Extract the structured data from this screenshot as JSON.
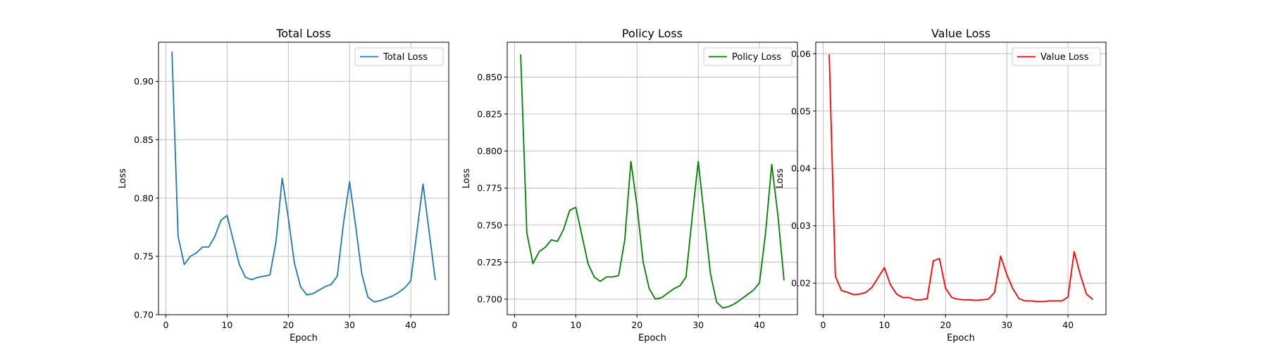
{
  "chart_data": [
    {
      "type": "line",
      "title": "Total Loss",
      "xlabel": "Epoch",
      "ylabel": "Loss",
      "xlim": [
        -1.2,
        46.2
      ],
      "ylim": [
        0.7,
        0.9335
      ],
      "xticks": [
        0,
        10,
        20,
        30,
        40
      ],
      "yticks": [
        0.7,
        0.75,
        0.8,
        0.85,
        0.9
      ],
      "ytick_decimals": 2,
      "grid": true,
      "legend": "upper right",
      "series": [
        {
          "name": "Total Loss",
          "color": "#1f77b4",
          "x": [
            1,
            2,
            3,
            4,
            5,
            6,
            7,
            8,
            9,
            10,
            11,
            12,
            13,
            14,
            15,
            16,
            17,
            18,
            19,
            20,
            21,
            22,
            23,
            24,
            25,
            26,
            27,
            28,
            29,
            30,
            31,
            32,
            33,
            34,
            35,
            36,
            37,
            38,
            39,
            40,
            41,
            42,
            43,
            44
          ],
          "y": [
            0.925,
            0.767,
            0.743,
            0.75,
            0.753,
            0.758,
            0.758,
            0.767,
            0.781,
            0.785,
            0.764,
            0.743,
            0.732,
            0.73,
            0.732,
            0.733,
            0.734,
            0.763,
            0.817,
            0.783,
            0.744,
            0.724,
            0.717,
            0.718,
            0.721,
            0.724,
            0.726,
            0.733,
            0.778,
            0.814,
            0.776,
            0.735,
            0.715,
            0.711,
            0.712,
            0.714,
            0.716,
            0.719,
            0.723,
            0.729,
            0.771,
            0.812,
            0.771,
            0.73
          ]
        }
      ]
    },
    {
      "type": "line",
      "title": "Policy Loss",
      "xlabel": "Epoch",
      "ylabel": "Loss",
      "xlim": [
        -1.2,
        46.2
      ],
      "ylim": [
        0.6895,
        0.8735
      ],
      "xticks": [
        0,
        10,
        20,
        30,
        40
      ],
      "yticks": [
        0.7,
        0.725,
        0.75,
        0.775,
        0.8,
        0.825,
        0.85
      ],
      "ytick_decimals": 3,
      "grid": true,
      "legend": "upper right",
      "series": [
        {
          "name": "Policy Loss",
          "color": "#008000",
          "x": [
            1,
            2,
            3,
            4,
            5,
            6,
            7,
            8,
            9,
            10,
            11,
            12,
            13,
            14,
            15,
            16,
            17,
            18,
            19,
            20,
            21,
            22,
            23,
            24,
            25,
            26,
            27,
            28,
            29,
            30,
            31,
            32,
            33,
            34,
            35,
            36,
            37,
            38,
            39,
            40,
            41,
            42,
            43,
            44
          ],
          "y": [
            0.865,
            0.745,
            0.724,
            0.732,
            0.735,
            0.74,
            0.739,
            0.747,
            0.76,
            0.762,
            0.743,
            0.724,
            0.715,
            0.712,
            0.715,
            0.715,
            0.716,
            0.74,
            0.793,
            0.763,
            0.725,
            0.707,
            0.7,
            0.701,
            0.704,
            0.707,
            0.709,
            0.715,
            0.755,
            0.793,
            0.755,
            0.717,
            0.698,
            0.694,
            0.695,
            0.697,
            0.7,
            0.703,
            0.706,
            0.711,
            0.745,
            0.791,
            0.757,
            0.713
          ]
        }
      ]
    },
    {
      "type": "line",
      "title": "Value Loss",
      "xlabel": "Epoch",
      "ylabel": "Loss",
      "xlim": [
        -1.2,
        46.2
      ],
      "ylim": [
        0.0145,
        0.062
      ],
      "xticks": [
        0,
        10,
        20,
        30,
        40
      ],
      "yticks": [
        0.02,
        0.03,
        0.04,
        0.05,
        0.06
      ],
      "ytick_decimals": 2,
      "grid": true,
      "legend": "upper right",
      "series": [
        {
          "name": "Value Loss",
          "color": "#ff0000",
          "x": [
            1,
            2,
            3,
            4,
            5,
            6,
            7,
            8,
            9,
            10,
            11,
            12,
            13,
            14,
            15,
            16,
            17,
            18,
            19,
            20,
            21,
            22,
            23,
            24,
            25,
            26,
            27,
            28,
            29,
            30,
            31,
            32,
            33,
            34,
            35,
            36,
            37,
            38,
            39,
            40,
            41,
            42,
            43,
            44
          ],
          "y": [
            0.0598,
            0.0212,
            0.0187,
            0.0184,
            0.018,
            0.0181,
            0.0184,
            0.0193,
            0.021,
            0.0227,
            0.0197,
            0.0181,
            0.0175,
            0.0175,
            0.0171,
            0.0171,
            0.0173,
            0.0239,
            0.0243,
            0.0191,
            0.0175,
            0.0172,
            0.0171,
            0.0171,
            0.017,
            0.0171,
            0.0172,
            0.0184,
            0.0247,
            0.0215,
            0.019,
            0.0173,
            0.0169,
            0.0169,
            0.0168,
            0.0168,
            0.0169,
            0.0169,
            0.0169,
            0.0176,
            0.0255,
            0.0215,
            0.0181,
            0.0172
          ]
        }
      ]
    }
  ]
}
